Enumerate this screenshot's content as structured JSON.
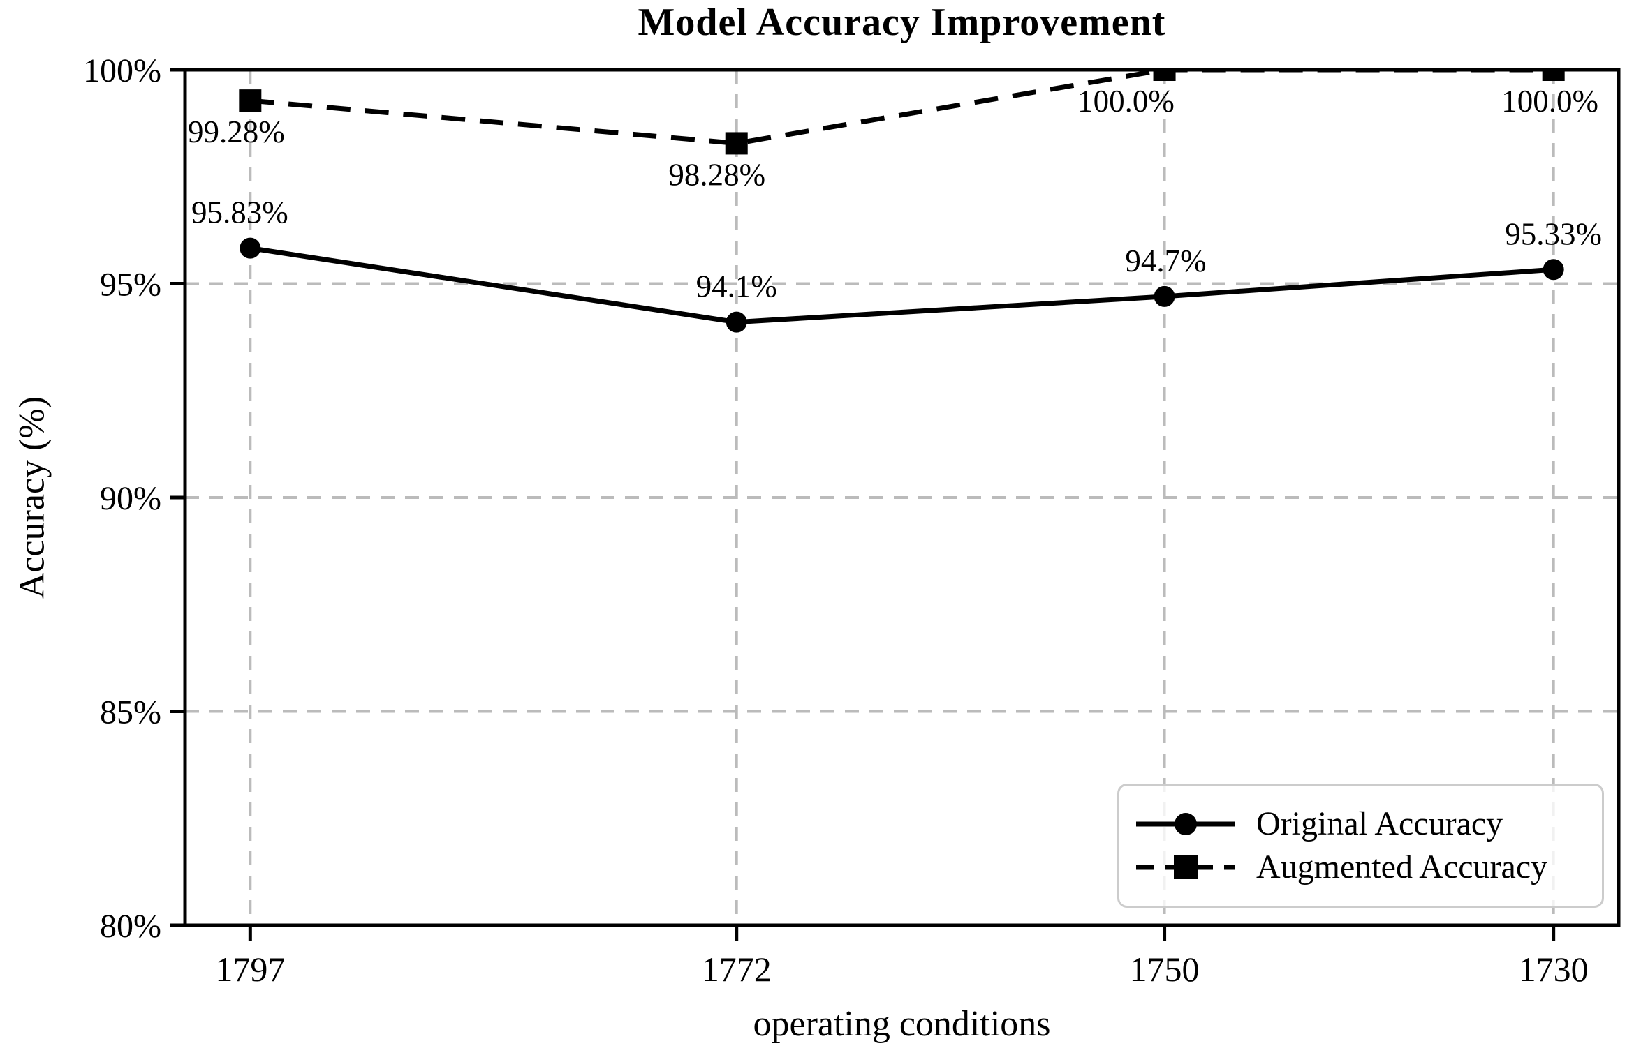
{
  "chart_data": {
    "type": "line",
    "title": "Model Accuracy Improvement",
    "xlabel": "operating conditions",
    "ylabel": "Accuracy (%)",
    "x_values": [
      1797,
      1772,
      1750,
      1730
    ],
    "x_tick_labels": [
      "1797",
      "1772",
      "1750",
      "1730"
    ],
    "x_axis_inverted": true,
    "xlim": [
      1800.35,
      1726.65
    ],
    "ylim": [
      80,
      100
    ],
    "y_ticks": [
      80,
      85,
      90,
      95,
      100
    ],
    "y_tick_labels": [
      "80%",
      "85%",
      "90%",
      "95%",
      "100%"
    ],
    "grid": "dashed",
    "legend_position": "lower right",
    "series": [
      {
        "name": "Original Accuracy",
        "line_style": "solid",
        "marker": "circle",
        "values": [
          95.83,
          94.1,
          94.7,
          95.33
        ],
        "point_labels": [
          "95.83%",
          "94.1%",
          "94.7%",
          "95.33%"
        ]
      },
      {
        "name": "Augmented Accuracy",
        "line_style": "dashed",
        "marker": "square",
        "values": [
          99.28,
          98.28,
          100.0,
          100.0
        ],
        "point_labels": [
          "99.28%",
          "98.28%",
          "100.0%",
          "100.0%"
        ]
      }
    ],
    "colors": {
      "series": "#000000",
      "grid": "#bbbbbb",
      "text": "#000000",
      "legend_border": "#cccccc",
      "background": "#ffffff"
    }
  }
}
